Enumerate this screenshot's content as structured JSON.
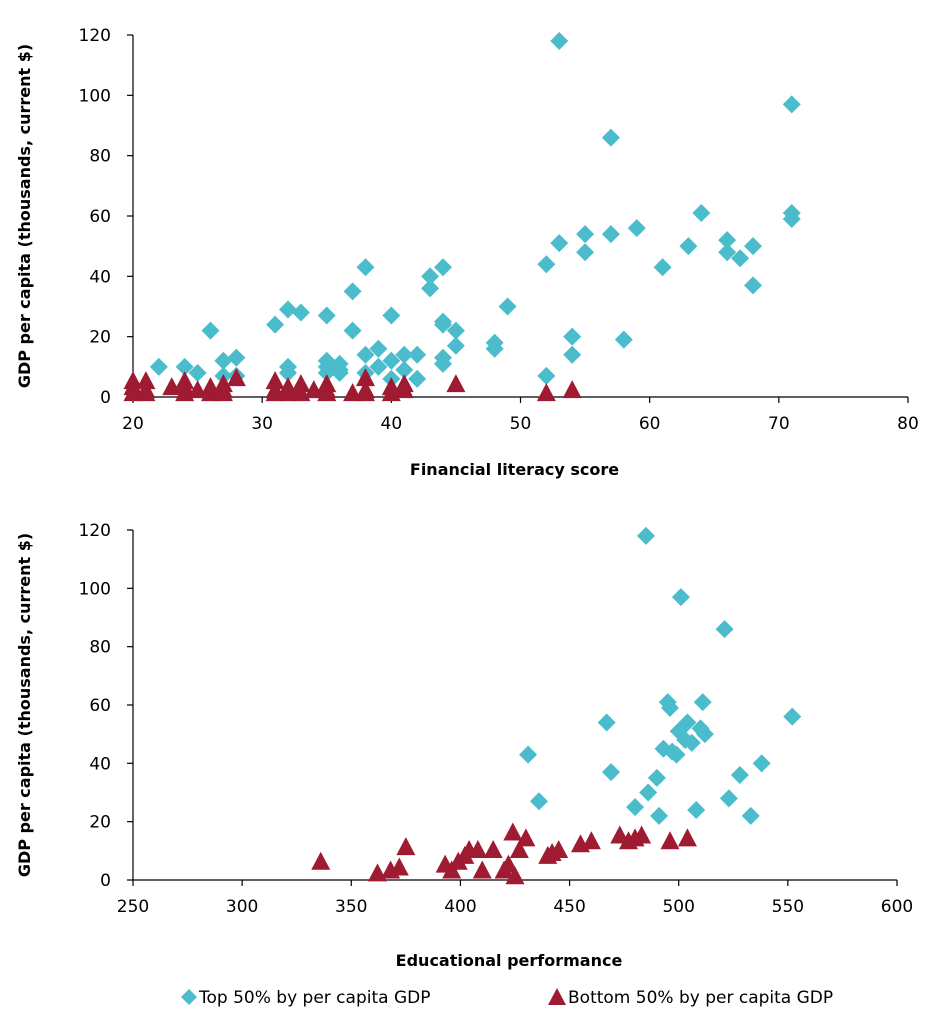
{
  "colors": {
    "top": "#4BBCCB",
    "bottom": "#9E1B32"
  },
  "legend": {
    "top_label": "Top 50% by per capita GDP",
    "bottom_label": "Bottom 50% by per capita GDP",
    "top_icon": "diamond-marker",
    "bottom_icon": "triangle-marker"
  },
  "chart_data": [
    {
      "type": "scatter",
      "title": "",
      "xlabel": "Financial literacy score",
      "ylabel": "GDP per capita (thousands, current $)",
      "xlim": [
        20,
        80
      ],
      "ylim": [
        0,
        120
      ],
      "xticks": [
        20,
        30,
        40,
        50,
        60,
        70,
        80
      ],
      "yticks": [
        0,
        20,
        40,
        60,
        80,
        100,
        120
      ],
      "grid": false,
      "legend_position": "bottom",
      "series": [
        {
          "name": "Top 50% by per capita GDP",
          "marker": "diamond",
          "color": "#4BBCCB",
          "points": [
            [
              53,
              118
            ],
            [
              71,
              97
            ],
            [
              57,
              86
            ],
            [
              64,
              61
            ],
            [
              71,
              61
            ],
            [
              71,
              59
            ],
            [
              59,
              56
            ],
            [
              55,
              54
            ],
            [
              57,
              54
            ],
            [
              53,
              51
            ],
            [
              66,
              52
            ],
            [
              63,
              50
            ],
            [
              68,
              50
            ],
            [
              66,
              48
            ],
            [
              55,
              48
            ],
            [
              67,
              46
            ],
            [
              61,
              43
            ],
            [
              52,
              44
            ],
            [
              38,
              43
            ],
            [
              44,
              43
            ],
            [
              43,
              40
            ],
            [
              68,
              37
            ],
            [
              43,
              36
            ],
            [
              37,
              35
            ],
            [
              49,
              30
            ],
            [
              32,
              29
            ],
            [
              33,
              28
            ],
            [
              35,
              27
            ],
            [
              40,
              27
            ],
            [
              44,
              25
            ],
            [
              31,
              24
            ],
            [
              44,
              24
            ],
            [
              37,
              22
            ],
            [
              45,
              22
            ],
            [
              26,
              22
            ],
            [
              54,
              20
            ],
            [
              58,
              19
            ],
            [
              48,
              18
            ],
            [
              45,
              17
            ],
            [
              48,
              16
            ],
            [
              39,
              16
            ],
            [
              54,
              14
            ],
            [
              38,
              14
            ],
            [
              41,
              14
            ],
            [
              42,
              14
            ],
            [
              44,
              13
            ],
            [
              27,
              12
            ],
            [
              28,
              13
            ],
            [
              35,
              12
            ],
            [
              36,
              11
            ],
            [
              40,
              12
            ],
            [
              44,
              11
            ],
            [
              22,
              10
            ],
            [
              24,
              10
            ],
            [
              32,
              10
            ],
            [
              35,
              10
            ],
            [
              39,
              10
            ],
            [
              36,
              9
            ],
            [
              41,
              9
            ],
            [
              25,
              8
            ],
            [
              35,
              8
            ],
            [
              36,
              8
            ],
            [
              38,
              8
            ],
            [
              52,
              7
            ],
            [
              27,
              7
            ],
            [
              28,
              7
            ],
            [
              42,
              6
            ],
            [
              32,
              8
            ],
            [
              40,
              6
            ]
          ]
        },
        {
          "name": "Bottom 50% by per capita GDP",
          "marker": "triangle",
          "color": "#9E1B32",
          "points": [
            [
              20,
              5
            ],
            [
              21,
              5
            ],
            [
              20,
              3
            ],
            [
              21,
              2
            ],
            [
              20,
              1
            ],
            [
              21,
              1
            ],
            [
              23,
              3
            ],
            [
              24,
              5
            ],
            [
              24,
              1
            ],
            [
              24,
              3
            ],
            [
              25,
              2
            ],
            [
              26,
              3
            ],
            [
              26,
              1
            ],
            [
              27,
              4
            ],
            [
              27,
              2
            ],
            [
              28,
              6
            ],
            [
              27,
              1
            ],
            [
              31,
              5
            ],
            [
              31,
              2
            ],
            [
              31,
              1
            ],
            [
              32,
              3
            ],
            [
              32,
              1
            ],
            [
              33,
              4
            ],
            [
              33,
              1
            ],
            [
              34,
              2
            ],
            [
              35,
              4
            ],
            [
              35,
              1
            ],
            [
              35,
              2
            ],
            [
              37,
              1
            ],
            [
              38,
              6
            ],
            [
              38,
              2
            ],
            [
              38,
              1
            ],
            [
              40,
              3
            ],
            [
              40,
              1
            ],
            [
              41,
              4
            ],
            [
              41,
              2
            ],
            [
              45,
              4
            ],
            [
              52,
              1
            ],
            [
              54,
              2
            ]
          ]
        }
      ]
    },
    {
      "type": "scatter",
      "title": "",
      "xlabel": "Educational performance",
      "ylabel": "GDP per capita (thousands, current $)",
      "xlim": [
        250,
        600
      ],
      "ylim": [
        0,
        120
      ],
      "xticks": [
        250,
        300,
        350,
        400,
        450,
        500,
        550,
        600
      ],
      "yticks": [
        0,
        20,
        40,
        60,
        80,
        100,
        120
      ],
      "grid": false,
      "legend_position": "bottom",
      "series": [
        {
          "name": "Top 50% by per capita GDP",
          "marker": "diamond",
          "color": "#4BBCCB",
          "points": [
            [
              485,
              118
            ],
            [
              501,
              97
            ],
            [
              521,
              86
            ],
            [
              495,
              61
            ],
            [
              511,
              61
            ],
            [
              496,
              59
            ],
            [
              552,
              56
            ],
            [
              467,
              54
            ],
            [
              504,
              54
            ],
            [
              500,
              51
            ],
            [
              510,
              52
            ],
            [
              512,
              50
            ],
            [
              493,
              45
            ],
            [
              497,
              44
            ],
            [
              499,
              43
            ],
            [
              503,
              48
            ],
            [
              506,
              47
            ],
            [
              431,
              43
            ],
            [
              538,
              40
            ],
            [
              469,
              37
            ],
            [
              528,
              36
            ],
            [
              490,
              35
            ],
            [
              486,
              30
            ],
            [
              436,
              27
            ],
            [
              523,
              28
            ],
            [
              480,
              25
            ],
            [
              508,
              24
            ],
            [
              491,
              22
            ],
            [
              533,
              22
            ]
          ]
        },
        {
          "name": "Bottom 50% by per capita GDP",
          "marker": "triangle",
          "color": "#9E1B32",
          "points": [
            [
              336,
              6
            ],
            [
              362,
              2
            ],
            [
              368,
              3
            ],
            [
              372,
              4
            ],
            [
              375,
              11
            ],
            [
              393,
              5
            ],
            [
              396,
              3
            ],
            [
              399,
              6
            ],
            [
              402,
              8
            ],
            [
              404,
              10
            ],
            [
              408,
              10
            ],
            [
              410,
              3
            ],
            [
              415,
              10
            ],
            [
              420,
              3
            ],
            [
              422,
              5
            ],
            [
              424,
              16
            ],
            [
              425,
              1
            ],
            [
              427,
              10
            ],
            [
              430,
              14
            ],
            [
              440,
              8
            ],
            [
              442,
              9
            ],
            [
              445,
              10
            ],
            [
              455,
              12
            ],
            [
              460,
              13
            ],
            [
              473,
              15
            ],
            [
              477,
              13
            ],
            [
              480,
              14
            ],
            [
              483,
              15
            ],
            [
              496,
              13
            ],
            [
              504,
              14
            ]
          ]
        }
      ]
    }
  ]
}
